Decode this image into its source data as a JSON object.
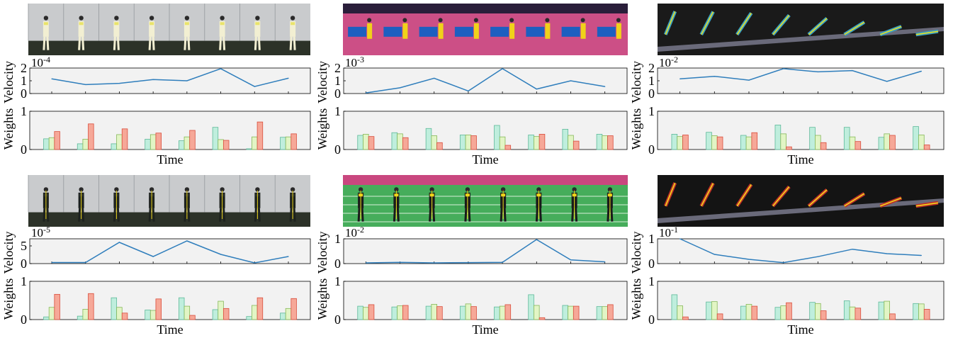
{
  "colors": {
    "velocity_line": "#2f7ebc",
    "axes_bg": "#f2f2f2",
    "bar_fills": [
      "#bfeedd",
      "#e2f5c5",
      "#f6a898"
    ],
    "bar_strokes": [
      "#5fb99a",
      "#86b85a",
      "#d94e3d"
    ]
  },
  "panel_labels": {
    "velocity_ylabel": "Velocity",
    "weights_ylabel": "Weights",
    "time_xlabel": "Time"
  },
  "chart_data": [
    {
      "type": "line",
      "panel": "row1-col1-velocity",
      "image": "person standing in a white room holding a yellow object, 8 frames",
      "scale_label": "10",
      "scale_exponent": "-4",
      "ylabel": "Velocity",
      "ylim": [
        0,
        2
      ],
      "yticks": [
        "2",
        "1",
        "0"
      ],
      "ytick_values": [
        2,
        1,
        0
      ],
      "x": [
        1,
        2,
        3,
        4,
        5,
        6,
        7,
        8
      ],
      "values": [
        1.15,
        0.7,
        0.8,
        1.1,
        1.0,
        1.95,
        0.55,
        1.2
      ]
    },
    {
      "type": "bar",
      "panel": "row1-col1-weights",
      "ylabel": "Weights",
      "xlabel": "Time",
      "ylim": [
        0,
        1
      ],
      "yticks": [
        "1",
        "0"
      ],
      "ytick_values": [
        1,
        0
      ],
      "categories": [
        1,
        2,
        3,
        4,
        5,
        6,
        7,
        8
      ],
      "series": [
        {
          "values": [
            0.28,
            0.15,
            0.15,
            0.27,
            0.23,
            0.58,
            0.02,
            0.32
          ]
        },
        {
          "values": [
            0.31,
            0.27,
            0.39,
            0.39,
            0.33,
            0.26,
            0.33,
            0.33
          ]
        },
        {
          "values": [
            0.47,
            0.67,
            0.54,
            0.43,
            0.5,
            0.24,
            0.72,
            0.41
          ]
        }
      ]
    },
    {
      "type": "line",
      "panel": "row1-col2-velocity",
      "image": "table tennis player on a blue table with pink background, 8 frames",
      "scale_label": "10",
      "scale_exponent": "-3",
      "ylabel": "Velocity",
      "ylim": [
        0,
        2
      ],
      "yticks": [
        "2",
        "1",
        "0"
      ],
      "ytick_values": [
        2,
        1,
        0
      ],
      "x": [
        1,
        2,
        3,
        4,
        5,
        6,
        7,
        8
      ],
      "values": [
        0.05,
        0.45,
        1.2,
        0.2,
        1.95,
        0.35,
        1.0,
        0.55
      ]
    },
    {
      "type": "bar",
      "panel": "row1-col2-weights",
      "ylabel": "Weights",
      "xlabel": "Time",
      "ylim": [
        0,
        1
      ],
      "yticks": [
        "1",
        "0"
      ],
      "ytick_values": [
        1,
        0
      ],
      "categories": [
        1,
        2,
        3,
        4,
        5,
        6,
        7,
        8
      ],
      "series": [
        {
          "values": [
            0.37,
            0.44,
            0.55,
            0.38,
            0.63,
            0.38,
            0.53,
            0.4
          ]
        },
        {
          "values": [
            0.4,
            0.41,
            0.36,
            0.38,
            0.33,
            0.34,
            0.37,
            0.36
          ]
        },
        {
          "values": [
            0.34,
            0.31,
            0.18,
            0.36,
            0.11,
            0.4,
            0.22,
            0.36
          ]
        }
      ]
    },
    {
      "type": "line",
      "panel": "row1-col3-velocity",
      "image": "gymnast performing on a pommel horse, 8 frames with skeleton overlay",
      "scale_label": "10",
      "scale_exponent": "-2",
      "ylabel": "Velocity",
      "ylim": [
        0,
        2
      ],
      "yticks": [
        "2",
        "1",
        "0"
      ],
      "ytick_values": [
        2,
        1,
        0
      ],
      "x": [
        1,
        2,
        3,
        4,
        5,
        6,
        7,
        8
      ],
      "values": [
        1.15,
        1.35,
        1.05,
        1.95,
        1.7,
        1.8,
        0.95,
        1.75
      ]
    },
    {
      "type": "bar",
      "panel": "row1-col3-weights",
      "ylabel": "Weights",
      "xlabel": "Time",
      "ylim": [
        0,
        1
      ],
      "yticks": [
        "1",
        "0"
      ],
      "ytick_values": [
        1,
        0
      ],
      "categories": [
        1,
        2,
        3,
        4,
        5,
        6,
        7,
        8
      ],
      "series": [
        {
          "values": [
            0.4,
            0.45,
            0.37,
            0.64,
            0.58,
            0.58,
            0.32,
            0.6
          ]
        },
        {
          "values": [
            0.34,
            0.36,
            0.33,
            0.41,
            0.37,
            0.33,
            0.41,
            0.38
          ]
        },
        {
          "values": [
            0.38,
            0.33,
            0.44,
            0.07,
            0.18,
            0.21,
            0.37,
            0.12
          ]
        }
      ]
    },
    {
      "type": "line",
      "panel": "row2-col1-velocity",
      "image": "person in a dark jacket standing in a white room, 8 frames",
      "scale_label": "10",
      "scale_exponent": "-5",
      "ylabel": "Velocity",
      "ylim": [
        0,
        7
      ],
      "yticks": [
        "5",
        "0"
      ],
      "ytick_values": [
        5,
        0
      ],
      "x": [
        1,
        2,
        3,
        4,
        5,
        6,
        7,
        8
      ],
      "values": [
        0.3,
        0.3,
        6.0,
        2.0,
        6.4,
        2.6,
        0.2,
        2.0
      ]
    },
    {
      "type": "bar",
      "panel": "row2-col1-weights",
      "ylabel": "Weights",
      "xlabel": "Time",
      "ylim": [
        0,
        1
      ],
      "yticks": [
        "1",
        "0"
      ],
      "ytick_values": [
        1,
        0
      ],
      "categories": [
        1,
        2,
        3,
        4,
        5,
        6,
        7,
        8
      ],
      "series": [
        {
          "values": [
            0.07,
            0.09,
            0.57,
            0.25,
            0.57,
            0.26,
            0.08,
            0.17
          ]
        },
        {
          "values": [
            0.32,
            0.27,
            0.32,
            0.24,
            0.35,
            0.48,
            0.37,
            0.29
          ]
        },
        {
          "values": [
            0.66,
            0.68,
            0.17,
            0.54,
            0.11,
            0.29,
            0.57,
            0.55
          ]
        }
      ]
    },
    {
      "type": "line",
      "panel": "row2-col2-velocity",
      "image": "badminton player on a green court, 8 frames with skeleton overlay",
      "scale_label": "10",
      "scale_exponent": "-2",
      "ylabel": "Velocity",
      "ylim": [
        0,
        1
      ],
      "yticks": [
        "1",
        "0"
      ],
      "ytick_values": [
        1,
        0
      ],
      "x": [
        1,
        2,
        3,
        4,
        5,
        6,
        7,
        8
      ],
      "values": [
        0.03,
        0.05,
        0.03,
        0.04,
        0.05,
        0.97,
        0.15,
        0.07
      ]
    },
    {
      "type": "bar",
      "panel": "row2-col2-weights",
      "ylabel": "Weights",
      "xlabel": "Time",
      "ylim": [
        0,
        1
      ],
      "yticks": [
        "1",
        "0"
      ],
      "ytick_values": [
        1,
        0
      ],
      "categories": [
        1,
        2,
        3,
        4,
        5,
        6,
        7,
        8
      ],
      "series": [
        {
          "values": [
            0.35,
            0.33,
            0.35,
            0.35,
            0.33,
            0.65,
            0.37,
            0.34
          ]
        },
        {
          "values": [
            0.32,
            0.36,
            0.4,
            0.41,
            0.35,
            0.37,
            0.35,
            0.34
          ]
        },
        {
          "values": [
            0.39,
            0.37,
            0.34,
            0.34,
            0.39,
            0.05,
            0.35,
            0.39
          ]
        }
      ]
    },
    {
      "type": "line",
      "panel": "row2-col3-velocity",
      "image": "gymnast performing on a pommel horse, 8 frames with red skeleton overlay",
      "scale_label": "10",
      "scale_exponent": "-1",
      "ylabel": "Velocity",
      "ylim": [
        0,
        1
      ],
      "yticks": [
        "1",
        "0"
      ],
      "ytick_values": [
        1,
        0
      ],
      "x": [
        1,
        2,
        3,
        4,
        5,
        6,
        7,
        8
      ],
      "values": [
        1.0,
        0.37,
        0.17,
        0.04,
        0.28,
        0.58,
        0.4,
        0.33
      ]
    },
    {
      "type": "bar",
      "panel": "row2-col3-weights",
      "ylabel": "Weights",
      "xlabel": "Time",
      "ylim": [
        0,
        1
      ],
      "yticks": [
        "1",
        "0"
      ],
      "ytick_values": [
        1,
        0
      ],
      "categories": [
        1,
        2,
        3,
        4,
        5,
        6,
        7,
        8
      ],
      "series": [
        {
          "values": [
            0.65,
            0.46,
            0.35,
            0.32,
            0.45,
            0.49,
            0.46,
            0.42
          ]
        },
        {
          "values": [
            0.36,
            0.47,
            0.4,
            0.36,
            0.42,
            0.33,
            0.48,
            0.41
          ]
        },
        {
          "values": [
            0.07,
            0.15,
            0.35,
            0.44,
            0.23,
            0.3,
            0.15,
            0.27
          ]
        }
      ]
    }
  ]
}
